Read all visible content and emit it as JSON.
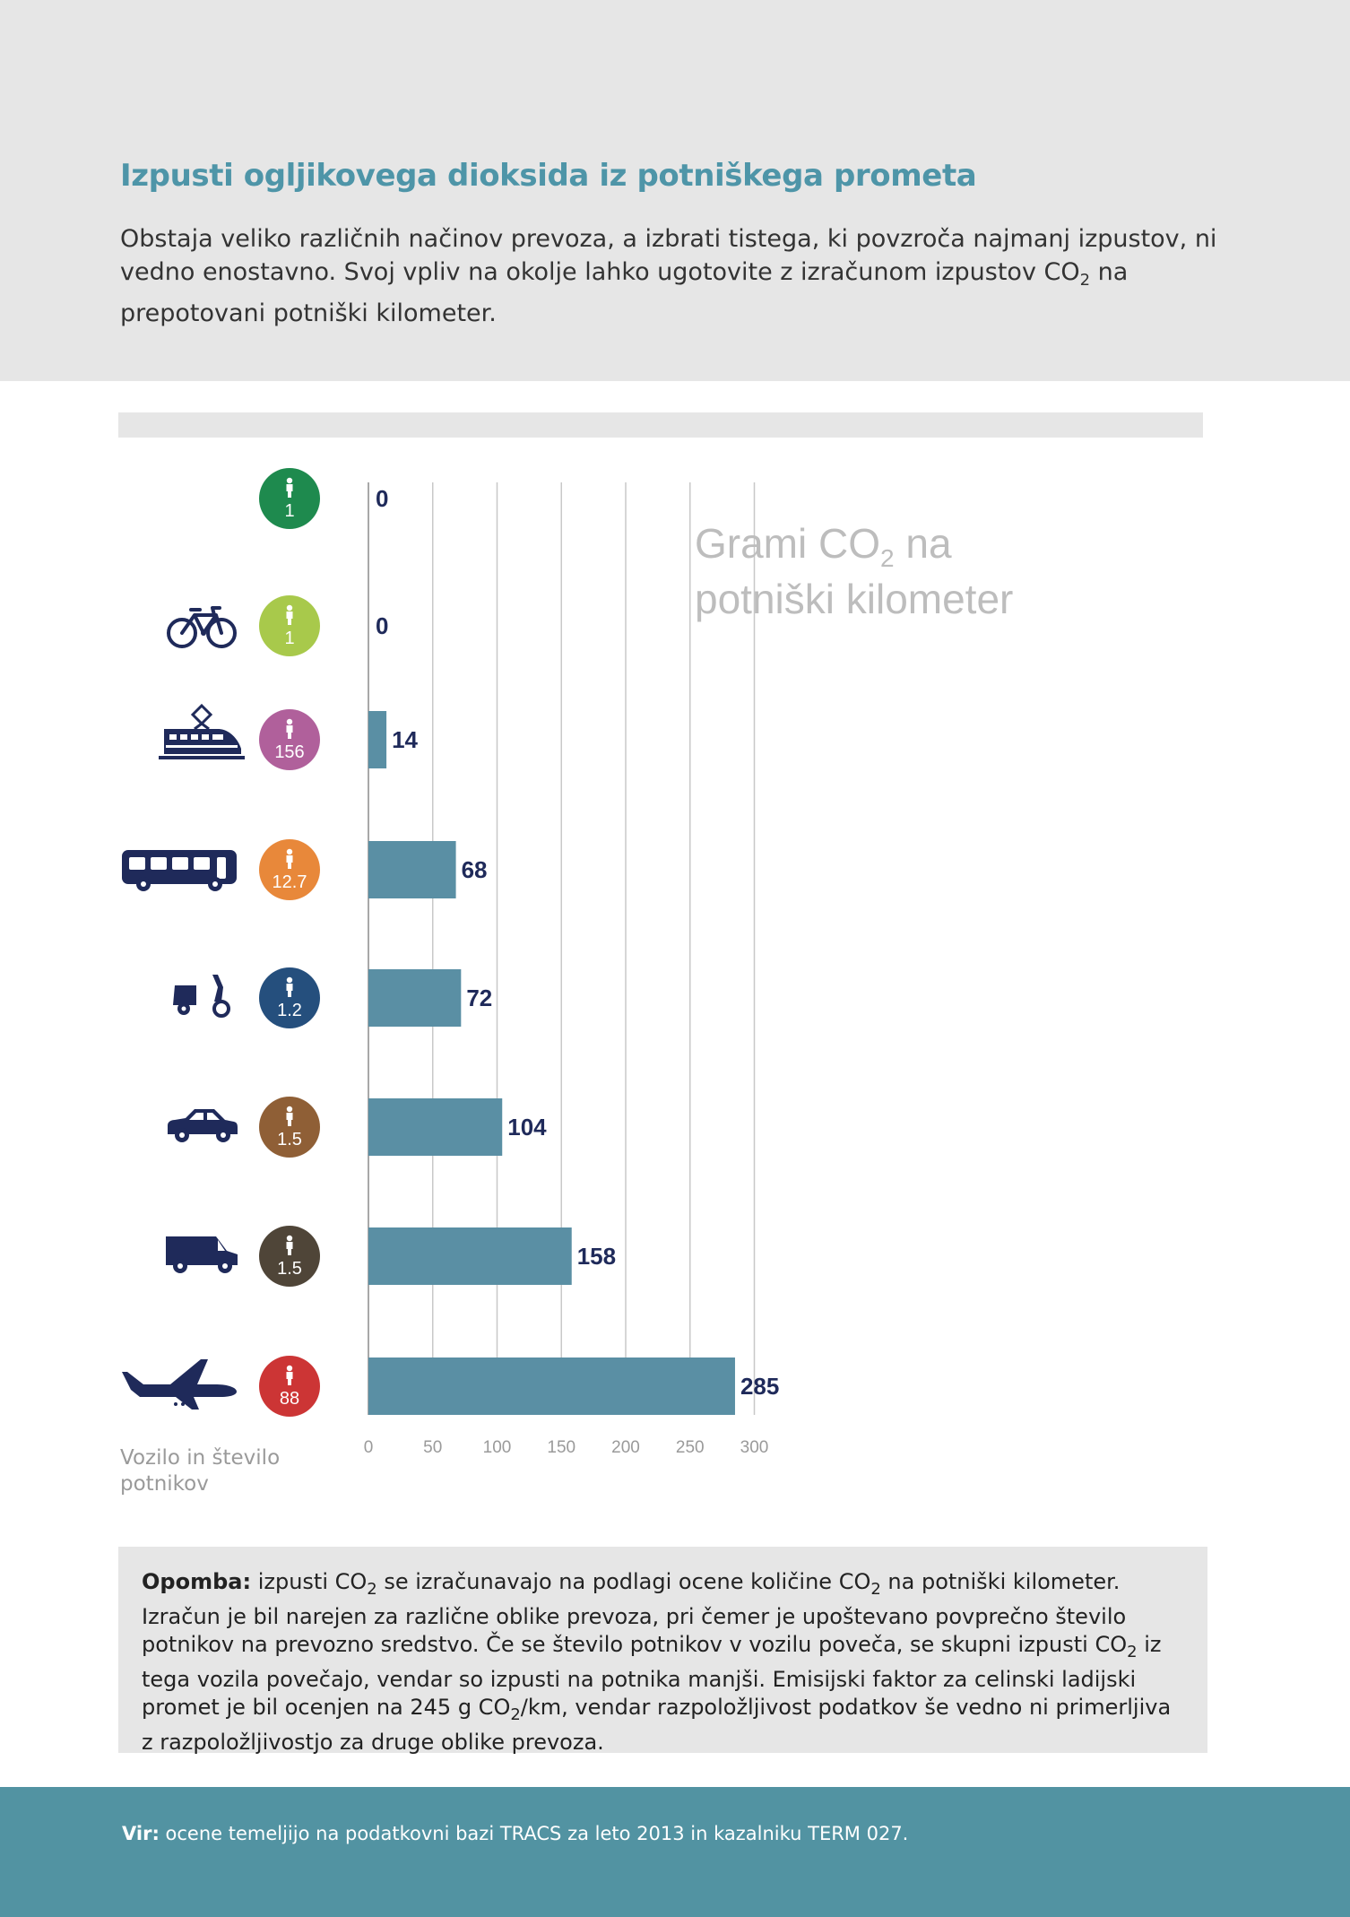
{
  "header": {
    "title": "Izpusti ogljikovega dioksida iz potniškega prometa",
    "intro_part1": "Obstaja veliko različnih načinov prevoza, a izbrati tistega, ki povzroča najmanj izpustov, ni vedno enostavno. Svoj vpliv na okolje lahko ugotovite z izračunom izpustov CO",
    "intro_sub": "2",
    "intro_part2": " na prepotovani potniški kilometer."
  },
  "chart_data": {
    "type": "bar",
    "orientation": "horizontal",
    "title_line1": "Grami CO",
    "title_sub": "2",
    "title_line1_end": " na",
    "title_line2": "potniški kilometer",
    "categories": [
      {
        "vehicle": "walking",
        "icon": "pedestrian-icon",
        "passengers": "1",
        "badge_color": "#1e8a4e"
      },
      {
        "vehicle": "bicycle",
        "icon": "bicycle-icon",
        "passengers": "1",
        "badge_color": "#a8c94b"
      },
      {
        "vehicle": "train",
        "icon": "train-icon",
        "passengers": "156",
        "badge_color": "#b0609b"
      },
      {
        "vehicle": "bus",
        "icon": "bus-icon",
        "passengers": "12.7",
        "badge_color": "#e8883a"
      },
      {
        "vehicle": "scooter",
        "icon": "scooter-icon",
        "passengers": "1.2",
        "badge_color": "#254f7d"
      },
      {
        "vehicle": "car",
        "icon": "car-icon",
        "passengers": "1.5",
        "badge_color": "#8f5f36"
      },
      {
        "vehicle": "van",
        "icon": "van-icon",
        "passengers": "1.5",
        "badge_color": "#4f4538"
      },
      {
        "vehicle": "airplane",
        "icon": "airplane-icon",
        "passengers": "88",
        "badge_color": "#cc3535"
      }
    ],
    "values": [
      0,
      0,
      14,
      68,
      72,
      104,
      158,
      285
    ],
    "value_labels": [
      "0",
      "0",
      "14",
      "68",
      "72",
      "104",
      "158",
      "285"
    ],
    "xlim": [
      0,
      300
    ],
    "xticks": [
      "0",
      "50",
      "100",
      "150",
      "200",
      "250",
      "300"
    ],
    "xtick_values": [
      0,
      50,
      100,
      150,
      200,
      250,
      300
    ],
    "grid": true,
    "bar_color": "#5a8fa4",
    "x_axis_caption": "Vozilo in število potnikov"
  },
  "note": {
    "label": "Opomba:",
    "t1": " izpusti CO",
    "s1": "2",
    "t2": " se izračunavajo na podlagi ocene količine CO",
    "s2": "2",
    "t3": " na potniški kilometer. Izračun je bil narejen za različne oblike prevoza, pri čemer je upoštevano povprečno število potnikov na prevozno sredstvo. Če se število potnikov v vozilu poveča, se skupni izpusti CO",
    "s3": "2",
    "t4": " iz tega vozila povečajo, vendar so izpusti na potnika manjši. Emisijski faktor za celinski ladijski promet je bil ocenjen na 245 g CO",
    "s4": "2",
    "t5": "/km, vendar razpoložljivost podatkov še vedno ni primerljiva z razpoložljivostjo za druge oblike prevoza."
  },
  "footer": {
    "source_label": "Vir:",
    "source_text": " ocene temeljijo na podatkovni bazi TRACS za leto 2013 in kazalniku TERM 027."
  },
  "colors": {
    "title": "#4e95a8",
    "header_bg": "#e6e6e6",
    "footer_bg": "#5293a2",
    "icon": "#1f2a5a"
  }
}
